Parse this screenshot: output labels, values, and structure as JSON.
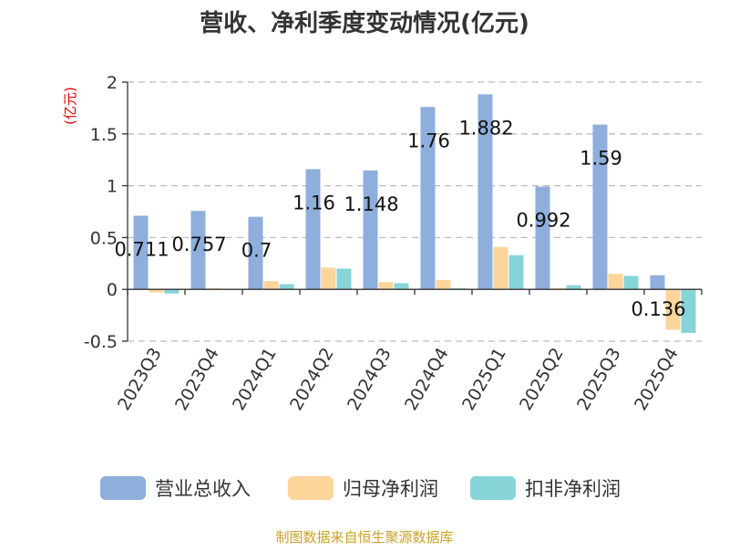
{
  "chart_data": {
    "type": "bar",
    "title": "营收、净利季度变动情况(亿元)",
    "unit": "(亿元)",
    "categories": [
      "2023Q3",
      "2023Q4",
      "2024Q1",
      "2024Q2",
      "2024Q3",
      "2024Q4",
      "2025Q1",
      "2025Q2",
      "2025Q3",
      "2025Q4"
    ],
    "series": [
      {
        "name": "营业总收入",
        "color": "#8eaedc",
        "values": [
          0.711,
          0.757,
          0.7,
          1.16,
          1.148,
          1.76,
          1.882,
          0.992,
          1.59,
          0.136
        ],
        "labels": [
          "0.711",
          "0.757",
          "0.7",
          "1.16",
          "1.148",
          "1.76",
          "1.882",
          "0.992",
          "1.59",
          "0.136"
        ]
      },
      {
        "name": "归母净利润",
        "color": "#fcd59b",
        "values": [
          -0.03,
          0.01,
          0.08,
          0.21,
          0.07,
          0.09,
          0.41,
          0.01,
          0.15,
          -0.39
        ]
      },
      {
        "name": "扣非净利润",
        "color": "#86d4d8",
        "values": [
          -0.04,
          0.0,
          0.05,
          0.2,
          0.06,
          0.01,
          0.33,
          0.04,
          0.13,
          -0.42
        ]
      }
    ],
    "ylim": [
      -0.5,
      2
    ],
    "yticks": [
      "-0.5",
      "0",
      "0.5",
      "1",
      "1.5",
      "2"
    ],
    "grid": true,
    "legend_position": "bottom"
  },
  "source": "制图数据来自恒生聚源数据库"
}
